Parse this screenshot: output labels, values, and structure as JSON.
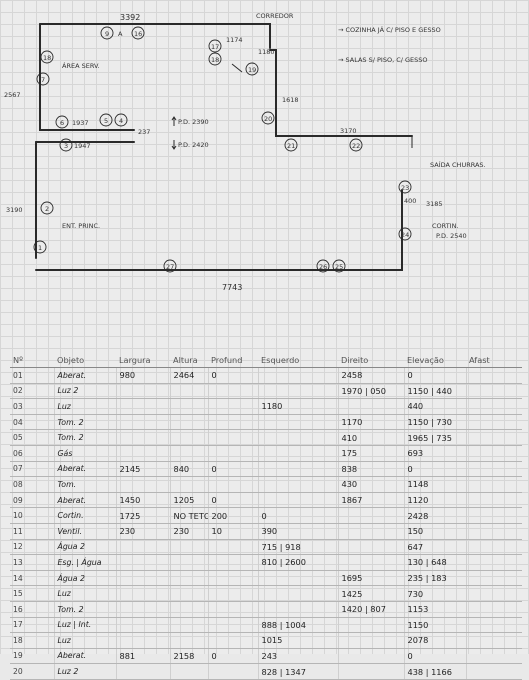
{
  "sketch": {
    "dimensions": {
      "top_wall": "3392",
      "corridor_wall": "1174",
      "corridor_offset": "1180",
      "left_jog": "2567",
      "right_vertical": "1618",
      "mid_wall": "3170",
      "left_wall": "3190",
      "right_wall": "3185",
      "bottom_wall": "7743",
      "inner_a": "1937",
      "inner_b": "1947",
      "inner_c": "237"
    },
    "ceiling_heights": {
      "h1": "P.D. 2390",
      "h2": "P.D. 2420",
      "h3": "P.D. 2540"
    },
    "labels": {
      "corredor": "CORREDOR",
      "area_serv": "ÁREA SERV.",
      "ent_princ": "ENT. PRINC.",
      "saida_churr": "SAÍDA CHURRAS.",
      "cortin": "CORTIN.",
      "letter_a": "A",
      "dim_400": "400"
    },
    "notes": {
      "note1": "→ COZINHA JÁ C/ PISO E GESSO",
      "note2": "→ SALAS S/ PISO, C/ GESSO"
    },
    "markers": [
      "18",
      "9",
      "16",
      "17",
      "18",
      "19",
      "7",
      "6",
      "5",
      "4",
      "3",
      "20",
      "21",
      "22",
      "2",
      "23",
      "24",
      "1",
      "27",
      "26",
      "25"
    ]
  },
  "table": {
    "headers": [
      "Nº",
      "Objeto",
      "Largura",
      "Altura",
      "Profund",
      "Esquerdo",
      "Direito",
      "Elevação",
      "Afast"
    ],
    "rows": [
      [
        "01",
        "Aberat.",
        "980",
        "2464",
        "0",
        "",
        "2458",
        "0",
        ""
      ],
      [
        "02",
        "Luz 2",
        "",
        "",
        "",
        "",
        "1970 | 050",
        "1150 | 440",
        ""
      ],
      [
        "03",
        "Luz",
        "",
        "",
        "",
        "1180",
        "",
        "440",
        ""
      ],
      [
        "04",
        "Tom. 2",
        "",
        "",
        "",
        "",
        "1170",
        "1150 | 730",
        ""
      ],
      [
        "05",
        "Tom. 2",
        "",
        "",
        "",
        "",
        "410",
        "1965 | 735",
        ""
      ],
      [
        "06",
        "Gás",
        "",
        "",
        "",
        "",
        "175",
        "693",
        ""
      ],
      [
        "07",
        "Aberat.",
        "2145",
        "840",
        "0",
        "",
        "838",
        "0",
        ""
      ],
      [
        "08",
        "Tom.",
        "",
        "",
        "",
        "",
        "430",
        "1148",
        ""
      ],
      [
        "09",
        "Aberat.",
        "1450",
        "1205",
        "0",
        "",
        "1867",
        "1120",
        ""
      ],
      [
        "10",
        "Cortin.",
        "1725",
        "NO TETO",
        "200",
        "0",
        "",
        "2428",
        ""
      ],
      [
        "11",
        "Ventil.",
        "230",
        "230",
        "10",
        "390",
        "",
        "150",
        ""
      ],
      [
        "12",
        "Água 2",
        "",
        "",
        "",
        "715 | 918",
        "",
        "647",
        ""
      ],
      [
        "13",
        "Esg. | Água",
        "",
        "",
        "",
        "810 | 2600",
        "",
        "130 | 648",
        ""
      ],
      [
        "14",
        "Água 2",
        "",
        "",
        "",
        "",
        "1695",
        "235 | 183",
        ""
      ],
      [
        "15",
        "Luz",
        "",
        "",
        "",
        "",
        "1425",
        "730",
        ""
      ],
      [
        "16",
        "Tom. 2",
        "",
        "",
        "",
        "",
        "1420 | 807",
        "1153",
        ""
      ],
      [
        "17",
        "Luz | Int.",
        "",
        "",
        "",
        "888 | 1004",
        "",
        "1150",
        ""
      ],
      [
        "18",
        "Luz",
        "",
        "",
        "",
        "1015",
        "",
        "2078",
        ""
      ],
      [
        "19",
        "Aberat.",
        "881",
        "2158",
        "0",
        "243",
        "",
        "0",
        ""
      ],
      [
        "20",
        "Luz 2",
        "",
        "",
        "",
        "828 | 1347",
        "",
        "438 | 1166",
        ""
      ]
    ]
  }
}
